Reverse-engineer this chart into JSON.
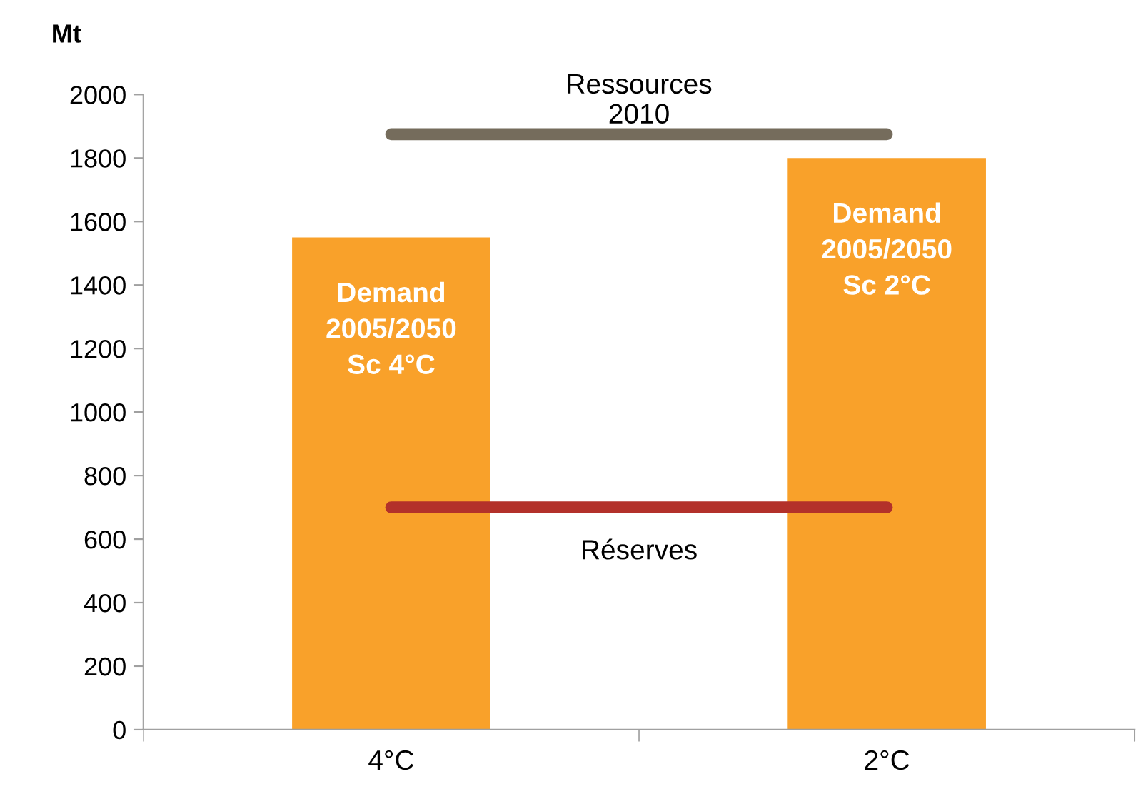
{
  "chart_data": {
    "type": "bar",
    "ylabel": "Mt",
    "categories": [
      "4°C",
      "2°C"
    ],
    "values": [
      1550,
      1800
    ],
    "color": "#f9a12a",
    "ylim": [
      0,
      2000
    ],
    "yticks": [
      0,
      200,
      400,
      600,
      800,
      1000,
      1200,
      1400,
      1600,
      1800,
      2000
    ],
    "grid": false,
    "ref_lines": [
      {
        "axis": "y",
        "value": 1875,
        "label": "Ressources\n2010",
        "color": "#756c5c"
      },
      {
        "axis": "y",
        "value": 700,
        "label": "Réserves",
        "color": "#b3312a"
      }
    ],
    "annotations": [
      "Demand\n2005/2050\nSc 4°C",
      "Demand\n2005/2050\nSc 2°C"
    ]
  }
}
